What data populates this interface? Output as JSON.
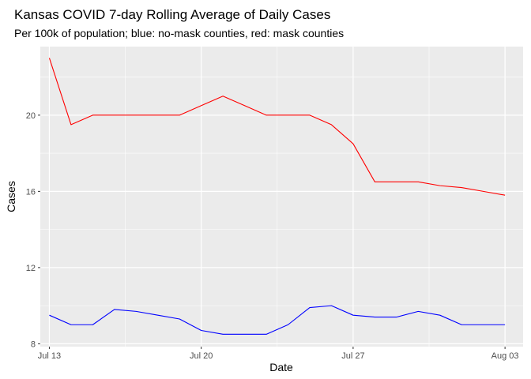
{
  "chart_data": {
    "type": "line",
    "title": "Kansas COVID 7-day Rolling Average of Daily Cases",
    "subtitle": "Per 100k of population; blue: no-mask counties, red: mask counties",
    "xlabel": "Date",
    "ylabel": "Cases",
    "x": [
      "2020-07-13",
      "2020-07-14",
      "2020-07-15",
      "2020-07-16",
      "2020-07-17",
      "2020-07-18",
      "2020-07-19",
      "2020-07-20",
      "2020-07-21",
      "2020-07-22",
      "2020-07-23",
      "2020-07-24",
      "2020-07-25",
      "2020-07-26",
      "2020-07-27",
      "2020-07-28",
      "2020-07-29",
      "2020-07-30",
      "2020-07-31",
      "2020-08-01",
      "2020-08-02",
      "2020-08-03"
    ],
    "xlim": [
      "2020-07-12T14:00",
      "2020-08-03T20:00"
    ],
    "ylim": [
      7.85,
      23.6
    ],
    "x_ticks": [
      {
        "date": "2020-07-13",
        "label": "Jul 13"
      },
      {
        "date": "2020-07-20",
        "label": "Jul 20"
      },
      {
        "date": "2020-07-27",
        "label": "Jul 27"
      },
      {
        "date": "2020-08-03",
        "label": "Aug 03"
      }
    ],
    "y_ticks": [
      8,
      12,
      16,
      20
    ],
    "grid": true,
    "background": "#ebebeb",
    "series": [
      {
        "color": "#ff0000",
        "values": [
          23.0,
          19.5,
          20.0,
          20.0,
          20.0,
          20.0,
          20.0,
          20.5,
          21.0,
          20.5,
          20.0,
          20.0,
          20.0,
          19.5,
          18.5,
          16.5,
          16.5,
          16.5,
          16.3,
          16.2,
          16.0,
          15.8
        ]
      },
      {
        "color": "#0000ff",
        "values": [
          9.5,
          9.0,
          9.0,
          9.8,
          9.7,
          9.5,
          9.3,
          8.7,
          8.5,
          8.5,
          8.5,
          9.0,
          9.9,
          10.0,
          9.5,
          9.4,
          9.4,
          9.7,
          9.5,
          9.0,
          9.0,
          9.0
        ]
      }
    ]
  }
}
